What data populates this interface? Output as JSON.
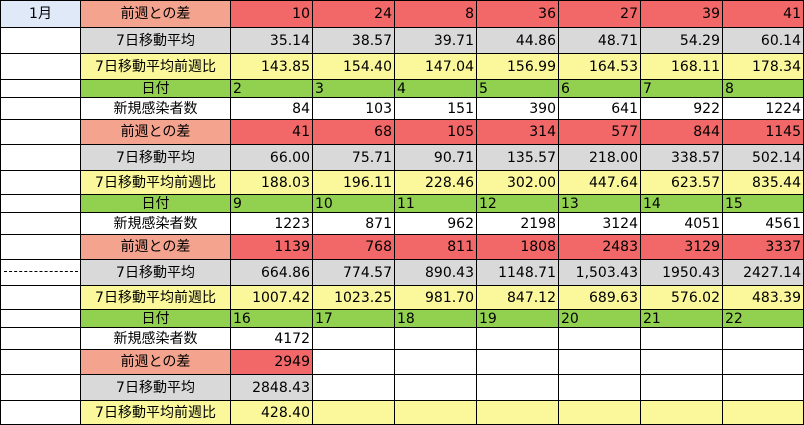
{
  "month_label": "1月",
  "row_labels": {
    "diff": "前週との差",
    "avg": "7日移動平均",
    "ratio": "7日移動平均前週比",
    "date": "日付",
    "new": "新規感染者数"
  },
  "blocks": [
    {
      "diff": [
        "10",
        "24",
        "8",
        "36",
        "27",
        "39",
        "41"
      ],
      "avg": [
        "35.14",
        "38.57",
        "39.71",
        "44.86",
        "48.71",
        "54.29",
        "60.14"
      ],
      "ratio": [
        "143.85",
        "154.40",
        "147.04",
        "156.99",
        "164.53",
        "168.11",
        "178.34"
      ]
    },
    {
      "dates": [
        "2",
        "3",
        "4",
        "5",
        "6",
        "7",
        "8"
      ],
      "new": [
        "84",
        "103",
        "151",
        "390",
        "641",
        "922",
        "1224"
      ],
      "diff": [
        "41",
        "68",
        "105",
        "314",
        "577",
        "844",
        "1145"
      ],
      "avg": [
        "66.00",
        "75.71",
        "90.71",
        "135.57",
        "218.00",
        "338.57",
        "502.14"
      ],
      "ratio": [
        "188.03",
        "196.11",
        "228.46",
        "302.00",
        "447.64",
        "623.57",
        "835.44"
      ]
    },
    {
      "dates": [
        "9",
        "10",
        "11",
        "12",
        "13",
        "14",
        "15"
      ],
      "new": [
        "1223",
        "871",
        "962",
        "2198",
        "3124",
        "4051",
        "4561"
      ],
      "diff": [
        "1139",
        "768",
        "811",
        "1808",
        "2483",
        "3129",
        "3337"
      ],
      "avg": [
        "664.86",
        "774.57",
        "890.43",
        "1148.71",
        "1,503.43",
        "1950.43",
        "2427.14"
      ],
      "ratio": [
        "1007.42",
        "1023.25",
        "981.70",
        "847.12",
        "689.63",
        "576.02",
        "483.39"
      ]
    },
    {
      "dates": [
        "16",
        "17",
        "18",
        "19",
        "20",
        "21",
        "22"
      ],
      "new": [
        "4172",
        "",
        "",
        "",
        "",
        "",
        ""
      ],
      "diff": [
        "2949",
        "",
        "",
        "",
        "",
        "",
        ""
      ],
      "avg": [
        "2848.43",
        "",
        "",
        "",
        "",
        "",
        ""
      ],
      "ratio": [
        "428.40",
        "",
        "",
        "",
        "",
        "",
        ""
      ]
    }
  ],
  "colors": {
    "diff_label": "#f4a48e",
    "diff_value": "#f26767",
    "avg": "#d9d9d9",
    "ratio": "#fbf89c",
    "date": "#92d050",
    "month_header": "#dfe9f7"
  }
}
